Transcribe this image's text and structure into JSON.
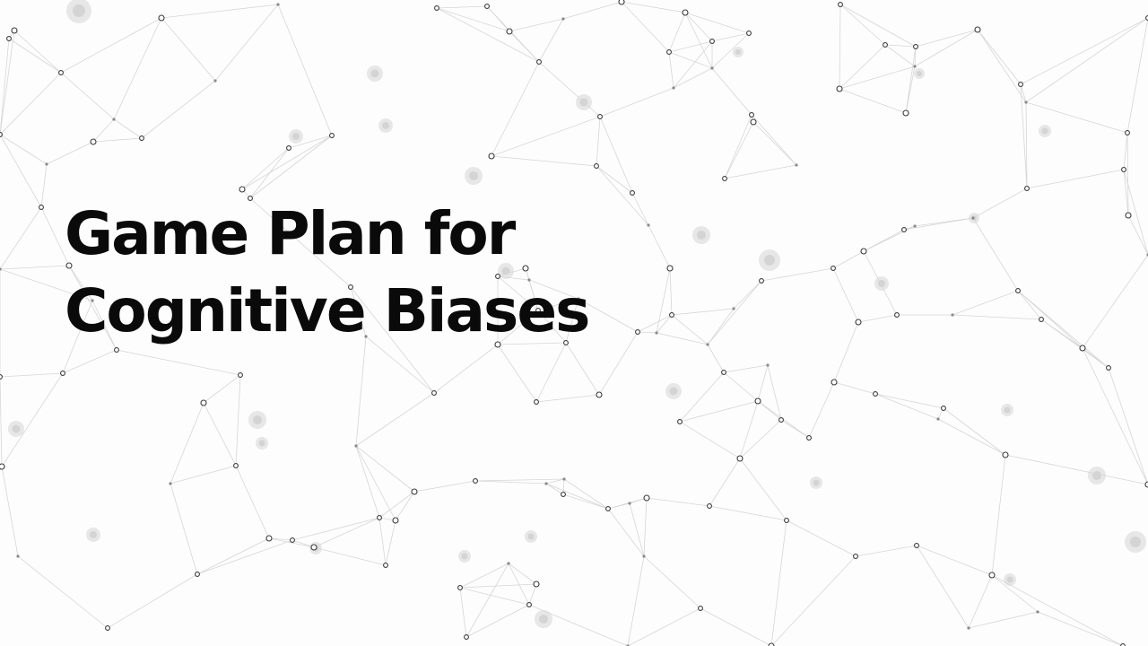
{
  "slide": {
    "title_lines": [
      "Game Plan for",
      "Cognitive Biases"
    ],
    "background": {
      "description_icon": "plexus-network-pattern",
      "node_color": "#3a3a3a",
      "line_color": "#d6d6d6",
      "blur_color": "#bdbdbd"
    }
  }
}
